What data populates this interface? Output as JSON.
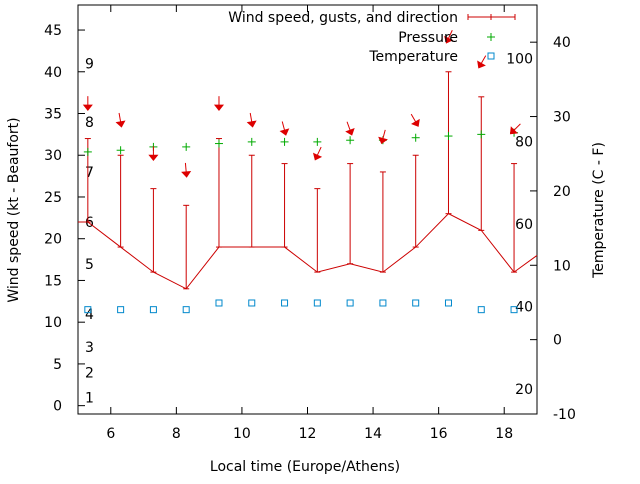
{
  "chart_data": {
    "type": "line",
    "title": "",
    "xlabel": "Local time (Europe/Athens)",
    "ylabel": "Wind speed (kt - Beaufort)",
    "y2label": "Temperature (C - F)",
    "xlim": [
      5,
      19
    ],
    "ylim": [
      -1,
      48
    ],
    "y2lim": [
      -10,
      45
    ],
    "x_ticks": [
      6,
      8,
      10,
      12,
      14,
      16,
      18
    ],
    "y_ticks": [
      0,
      5,
      10,
      15,
      20,
      25,
      30,
      35,
      40,
      45
    ],
    "y2_ticks": [
      -10,
      0,
      10,
      20,
      30,
      40
    ],
    "beaufort_labels": [
      {
        "label": "1",
        "kt": 1
      },
      {
        "label": "2",
        "kt": 4
      },
      {
        "label": "3",
        "kt": 7
      },
      {
        "label": "4",
        "kt": 11
      },
      {
        "label": "5",
        "kt": 17
      },
      {
        "label": "6",
        "kt": 22
      },
      {
        "label": "7",
        "kt": 28
      },
      {
        "label": "8",
        "kt": 34
      },
      {
        "label": "9",
        "kt": 41
      }
    ],
    "fahrenheit_labels": [
      {
        "label": "20",
        "c": -6.67
      },
      {
        "label": "40",
        "c": 4.44
      },
      {
        "label": "60",
        "c": 15.56
      },
      {
        "label": "80",
        "c": 26.67
      },
      {
        "label": "100",
        "c": 37.78
      }
    ],
    "legend": [
      {
        "label": "Wind speed, gusts, and direction",
        "series": "wind"
      },
      {
        "label": "Pressure",
        "series": "pressure"
      },
      {
        "label": "Temperature",
        "series": "temperature"
      }
    ],
    "wind_edges": [
      {
        "x": 5,
        "y": 22
      },
      {
        "x": 19,
        "y": 18
      }
    ],
    "series": [
      {
        "name": "Wind speed",
        "x": [
          5.3,
          6.3,
          7.3,
          8.3,
          9.3,
          10.3,
          11.3,
          12.3,
          13.3,
          14.3,
          15.3,
          16.3,
          17.3,
          18.3
        ],
        "values": [
          22,
          19,
          16,
          14,
          19,
          19,
          19,
          16,
          17,
          16,
          19,
          23,
          21,
          16
        ]
      },
      {
        "name": "Gusts",
        "x": [
          5.3,
          6.3,
          7.3,
          8.3,
          9.3,
          10.3,
          11.3,
          12.3,
          13.3,
          14.3,
          15.3,
          16.3,
          17.3,
          18.3
        ],
        "values": [
          32,
          30,
          26,
          24,
          32,
          30,
          29,
          26,
          29,
          28,
          30,
          40,
          37,
          29
        ]
      },
      {
        "name": "Pressure",
        "x": [
          5.3,
          6.3,
          7.3,
          8.3,
          9.3,
          10.3,
          11.3,
          12.3,
          13.3,
          14.3,
          15.3,
          16.3,
          17.3,
          18.3
        ],
        "values": [
          30.4,
          30.6,
          31.0,
          31.0,
          31.4,
          31.6,
          31.6,
          31.6,
          31.8,
          31.8,
          32.1,
          32.3,
          32.5,
          32.7
        ]
      },
      {
        "name": "Temperature",
        "x": [
          5.3,
          6.3,
          7.3,
          8.3,
          9.3,
          10.3,
          11.3,
          12.3,
          13.3,
          14.3,
          15.3,
          16.3,
          17.3,
          18.3
        ],
        "values": [
          11.5,
          11.5,
          11.5,
          11.5,
          12.3,
          12.3,
          12.3,
          12.3,
          12.3,
          12.3,
          12.3,
          12.3,
          11.5,
          11.5
        ]
      },
      {
        "name": "Direction",
        "x": [
          5.3,
          6.3,
          7.3,
          8.3,
          9.3,
          10.3,
          11.3,
          12.3,
          13.3,
          14.3,
          15.3,
          16.3,
          17.3,
          18.3
        ],
        "values": [
          36,
          34,
          30,
          28,
          36,
          34,
          33,
          30,
          33,
          32,
          34,
          44,
          41,
          33
        ],
        "angles": [
          0,
          -10,
          0,
          -5,
          0,
          -10,
          -15,
          25,
          -20,
          15,
          -30,
          25,
          30,
          45
        ]
      }
    ]
  }
}
